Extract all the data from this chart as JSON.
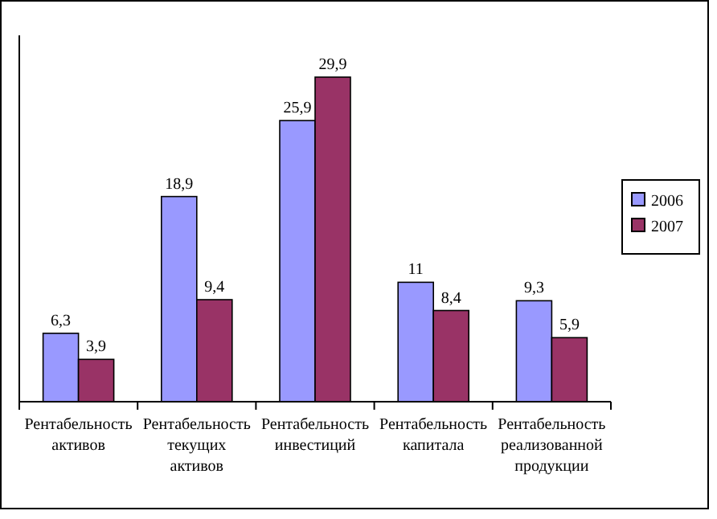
{
  "chart_data": {
    "type": "bar",
    "categories": [
      "Рентабельность активов",
      "Рентабельность текущих активов",
      "Рентабельность инвестиций",
      "Рентабельность капитала",
      "Рентабельность реализованной продукции"
    ],
    "series": [
      {
        "name": "2006",
        "color": "#9999ff",
        "values": [
          6.3,
          18.9,
          25.9,
          11,
          9.3
        ],
        "value_labels": [
          "6,3",
          "18,9",
          "25,9",
          "11",
          "9,3"
        ]
      },
      {
        "name": "2007",
        "color": "#993366",
        "values": [
          3.9,
          9.4,
          29.9,
          8.4,
          5.9
        ],
        "value_labels": [
          "3,9",
          "9,4",
          "29,9",
          "8,4",
          "5,9"
        ]
      }
    ],
    "legend": "right"
  }
}
